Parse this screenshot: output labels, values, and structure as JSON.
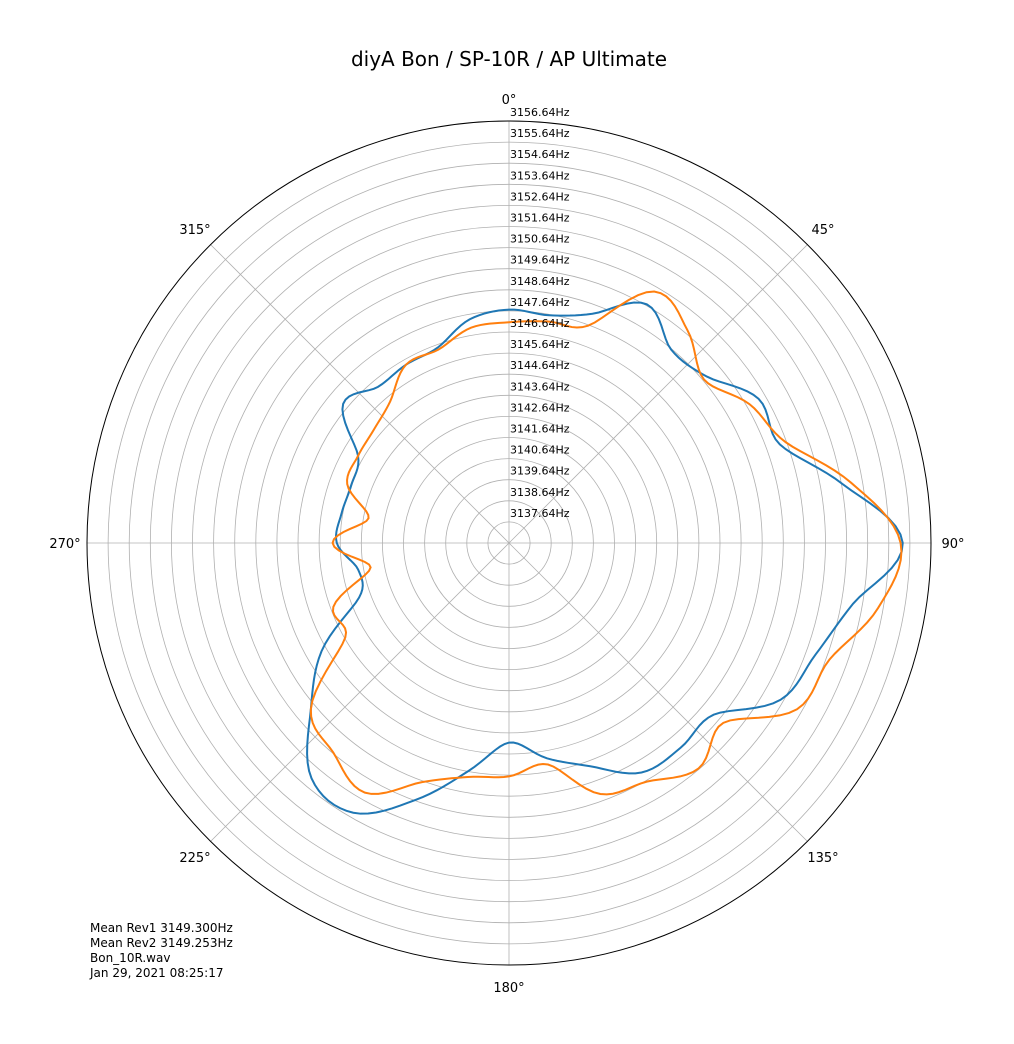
{
  "chart_data": {
    "type": "line",
    "subtype": "polar",
    "title": "diyA Bon / SP-10R / AP Ultimate",
    "angle_direction": "clockwise",
    "zero_location": "top",
    "theta_tick_labels": [
      "0°",
      "45°",
      "90°",
      "135°",
      "180°",
      "225°",
      "270°",
      "315°"
    ],
    "r_tick_labels": [
      "3137.64Hz",
      "3138.64Hz",
      "3139.64Hz",
      "3140.64Hz",
      "3141.64Hz",
      "3142.64Hz",
      "3143.64Hz",
      "3144.64Hz",
      "3145.64Hz",
      "3146.64Hz",
      "3147.64Hz",
      "3148.64Hz",
      "3149.64Hz",
      "3150.64Hz",
      "3151.64Hz",
      "3152.64Hz",
      "3153.64Hz",
      "3154.64Hz",
      "3155.64Hz",
      "3156.64Hz"
    ],
    "r_ticks": [
      3137.64,
      3138.64,
      3139.64,
      3140.64,
      3141.64,
      3142.64,
      3143.64,
      3144.64,
      3145.64,
      3146.64,
      3147.64,
      3148.64,
      3149.64,
      3150.64,
      3151.64,
      3152.64,
      3153.64,
      3154.64,
      3155.64,
      3156.64
    ],
    "rlim": [
      3136.64,
      3156.64
    ],
    "grid": true,
    "colors": {
      "rev1": "#1f77b4",
      "rev2": "#ff7f0e",
      "grid": "#b0b0b0"
    },
    "series": [
      {
        "theta_deg": [
          0,
          10,
          20,
          30,
          40,
          50,
          60,
          70,
          80,
          90,
          100,
          110,
          120,
          130,
          140,
          150,
          160,
          170,
          180,
          190,
          200,
          210,
          220,
          230,
          240,
          250,
          260,
          270,
          280,
          290,
          300,
          310,
          320,
          330,
          340,
          350
        ],
        "r": [
          3147.7,
          3147.6,
          3148.2,
          3149.7,
          3148.6,
          3148.9,
          3150.3,
          3150.3,
          3152.7,
          3155.3,
          3153.2,
          3152.1,
          3151.5,
          3149.3,
          3149.3,
          3149.2,
          3147.9,
          3147.0,
          3146.1,
          3147.6,
          3149.6,
          3151.4,
          3151.2,
          3148.9,
          3146.9,
          3144.2,
          3143.9,
          3144.8,
          3144.7,
          3144.6,
          3144.9,
          3146.9,
          3146.3,
          3146.4,
          3146.5,
          3147.4
        ]
      },
      {
        "theta_deg": [
          0,
          10,
          20,
          30,
          40,
          50,
          60,
          70,
          80,
          90,
          100,
          110,
          120,
          130,
          140,
          150,
          160,
          170,
          180,
          190,
          200,
          210,
          220,
          230,
          240,
          250,
          260,
          270,
          280,
          290,
          300,
          310,
          320,
          330,
          340,
          350
        ],
        "r": [
          3147.1,
          3147.3,
          3147.6,
          3150.4,
          3149.8,
          3148.7,
          3149.8,
          3150.6,
          3153.1,
          3155.2,
          3154.4,
          3152.8,
          3152.4,
          3149.9,
          3150.6,
          3149.7,
          3149.3,
          3147.3,
          3147.7,
          3147.9,
          3148.7,
          3150.3,
          3149.6,
          3148.9,
          3145.6,
          3145.5,
          3143.3,
          3145.0,
          3143.4,
          3144.8,
          3144.9,
          3145.0,
          3145.4,
          3146.4,
          3146.4,
          3147.0
        ]
      }
    ]
  },
  "info": {
    "mean_rev1": "Mean Rev1 3149.300Hz",
    "mean_rev2": "Mean Rev2 3149.253Hz",
    "filename": "Bon_10R.wav",
    "timestamp": "Jan 29, 2021 08:25:17"
  }
}
